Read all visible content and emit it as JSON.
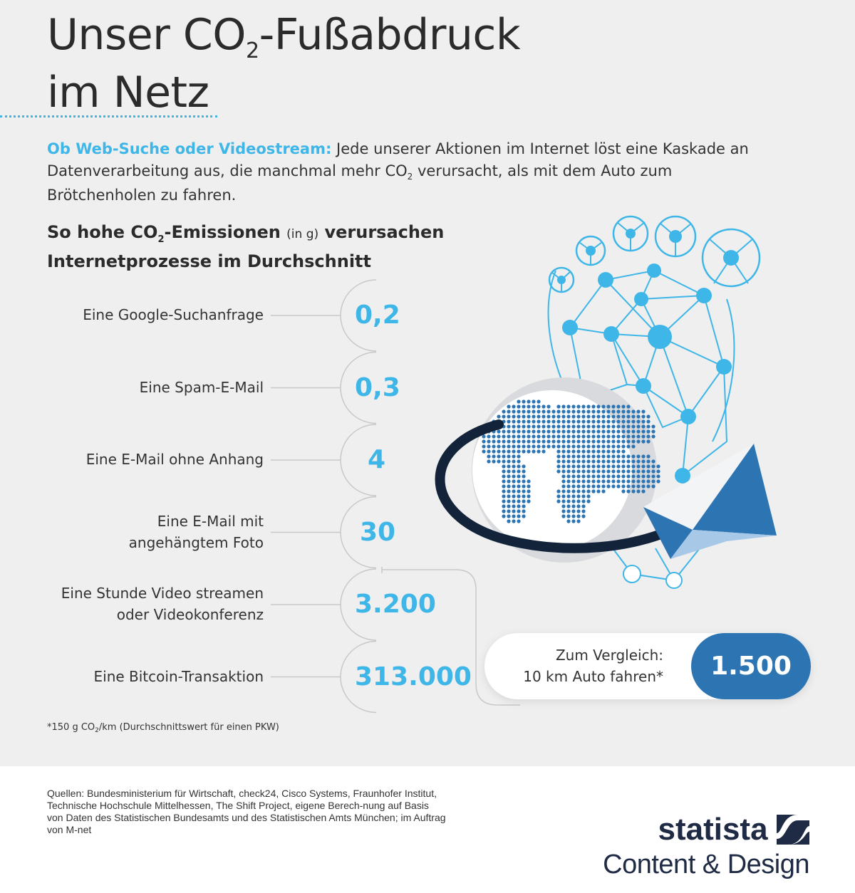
{
  "title": {
    "line1_pre": "Unser CO",
    "line1_sub": "2",
    "line1_post": "-Fußabdruck",
    "line2": "im Netz"
  },
  "intro": {
    "lead": "Ob Web-Suche oder Videostream:",
    "text_1": " Jede unserer Aktionen im Internet löst eine Kaskade an Datenverarbeitung aus, die manchmal mehr CO",
    "text_sub": "2",
    "text_2": " verursacht, als mit dem Auto zum Brötchenholen zu fahren."
  },
  "subtitle": {
    "part1": "So hohe CO",
    "sub": "2",
    "part2": "-Emissionen ",
    "unit": "(in g)",
    "part3": " verursachen Internetprozesse im Durchschnitt"
  },
  "chart_data": {
    "type": "table",
    "unit": "g",
    "categories": [
      "Eine Google-Suchanfrage",
      "Eine Spam-E-Mail",
      "Eine E-Mail ohne Anhang",
      "Eine E-Mail mit angehängtem Foto",
      "Eine Stunde Video streamen oder Videokonferenz",
      "Eine Bitcoin-Transaktion"
    ],
    "values": [
      0.2,
      0.3,
      4,
      30,
      3200,
      313000
    ],
    "rows": [
      {
        "label_lines": [
          "Eine Google-Suchanfrage"
        ],
        "value_label": "0,2"
      },
      {
        "label_lines": [
          "Eine Spam-E-Mail"
        ],
        "value_label": "0,3"
      },
      {
        "label_lines": [
          "Eine E-Mail ohne Anhang"
        ],
        "value_label": "4"
      },
      {
        "label_lines": [
          "Eine E-Mail mit",
          "angehängtem Foto"
        ],
        "value_label": "30"
      },
      {
        "label_lines": [
          "Eine Stunde Video streamen",
          "oder Videokonferenz"
        ],
        "value_label": "3.200"
      },
      {
        "label_lines": [
          "Eine Bitcoin-Transaktion"
        ],
        "value_label": "313.000"
      }
    ],
    "comparison": {
      "label_line1": "Zum Vergleich:",
      "label_line2": "10 km Auto fahren*",
      "value": 1500,
      "value_label": "1.500"
    }
  },
  "footnote": {
    "pre": "*150 g CO",
    "sub": "2",
    "post": "/km (Durchschnittswert für einen PKW)"
  },
  "footer": {
    "sources": "Quellen: Bundesministerium für Wirtschaft, check24, Cisco Systems, Fraunhofer Institut, Technische Hochschule Mittelhessen, The Shift Project, eigene Berech-nung auf Basis von Daten des Statistischen Bundesamts und des Statistischen Amts München; im Auftrag von M-net",
    "brand_name": "statista",
    "brand_sub": "Content & Design"
  },
  "colors": {
    "accent": "#3fb6e8",
    "dark_blue": "#2d74b3",
    "navy": "#1f2a44",
    "background": "#efefef"
  }
}
